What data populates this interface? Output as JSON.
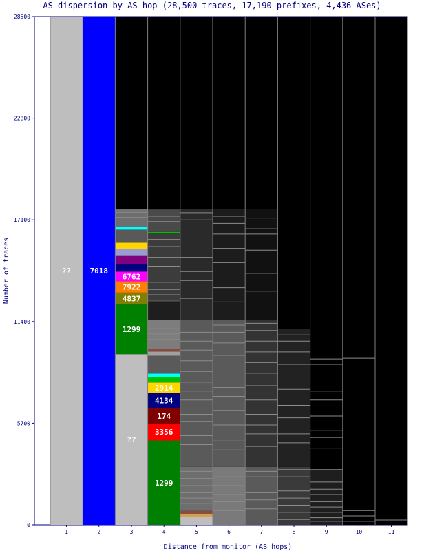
{
  "chart_data": {
    "type": "bar",
    "title": "AS dispersion by AS hop (28,500 traces, 17,190 prefixes, 4,436 ASes)",
    "xlabel": "Distance from monitor (AS hops)",
    "ylabel": "Number of traces",
    "ylim": [
      0,
      28500
    ],
    "yticks": [
      "0",
      "5700",
      "11400",
      "17100",
      "22800",
      "28500"
    ],
    "categories": [
      "1",
      "2",
      "3",
      "4",
      "5",
      "6",
      "7",
      "8",
      "9",
      "10",
      "11"
    ],
    "totals": [
      28500,
      28500,
      17690,
      17680,
      17700,
      17700,
      17700,
      17690,
      10650,
      9340,
      270
    ],
    "background_color": "#000000",
    "colors": {
      "unknown": "#bebebe",
      "7018": "#0000ff",
      "1299": "#008000",
      "4837": "#808000",
      "7922": "#ff8000",
      "6762": "#ff00ff",
      "2914": "#ffd700",
      "4134": "#000080",
      "174": "#800000",
      "3356": "#ff0000",
      "minor": "#808080"
    },
    "segments": [
      {
        "hop": "1",
        "label": "??",
        "y0": 0,
        "y1": 28500,
        "color": "#bebebe",
        "text_color": "#ffffff"
      },
      {
        "hop": "2",
        "label": "7018",
        "y0": 0,
        "y1": 28500,
        "color": "#0000ff",
        "text_color": "#ffffff"
      },
      {
        "hop": "3",
        "label": "??",
        "y0": 0,
        "y1": 9570,
        "color": "#bebebe",
        "text_color": "#ffffff"
      },
      {
        "hop": "3",
        "label": "1299",
        "y0": 9570,
        "y1": 12350,
        "color": "#008000",
        "text_color": "#ffffff"
      },
      {
        "hop": "3",
        "label": "4837",
        "y0": 12350,
        "y1": 13020,
        "color": "#808000",
        "text_color": "#ffffff"
      },
      {
        "hop": "3",
        "label": "7922",
        "y0": 13020,
        "y1": 13650,
        "color": "#ff8000",
        "text_color": "#ffffff"
      },
      {
        "hop": "3",
        "label": "6762",
        "y0": 13650,
        "y1": 14200,
        "color": "#ff00ff",
        "text_color": "#ffffff"
      },
      {
        "hop": "3",
        "label": "",
        "y0": 14200,
        "y1": 14630,
        "color": "#000080",
        "text_color": ""
      },
      {
        "hop": "3",
        "label": "",
        "y0": 14630,
        "y1": 15110,
        "color": "#800080",
        "text_color": ""
      },
      {
        "hop": "3",
        "label": "",
        "y0": 15110,
        "y1": 15470,
        "color": "#9b9bd2",
        "text_color": ""
      },
      {
        "hop": "3",
        "label": "",
        "y0": 15470,
        "y1": 15820,
        "color": "#ffd700",
        "text_color": ""
      },
      {
        "hop": "3",
        "label": "",
        "y0": 15820,
        "y1": 16550,
        "color": "#595959",
        "text_color": ""
      },
      {
        "hop": "3",
        "label": "",
        "y0": 16550,
        "y1": 16720,
        "color": "#00ffff",
        "text_color": ""
      },
      {
        "hop": "3",
        "label": "",
        "y0": 16720,
        "y1": 17690,
        "color": "#6e6e6e",
        "text_color": ""
      },
      {
        "hop": "4",
        "label": "1299",
        "y0": 0,
        "y1": 4730,
        "color": "#008000",
        "text_color": "#ffffff"
      },
      {
        "hop": "4",
        "label": "3356",
        "y0": 4730,
        "y1": 5680,
        "color": "#ff0000",
        "text_color": "#ffffff"
      },
      {
        "hop": "4",
        "label": "174",
        "y0": 5680,
        "y1": 6540,
        "color": "#800000",
        "text_color": "#ffffff"
      },
      {
        "hop": "4",
        "label": "4134",
        "y0": 6540,
        "y1": 7390,
        "color": "#000080",
        "text_color": "#ffffff"
      },
      {
        "hop": "4",
        "label": "2914",
        "y0": 7390,
        "y1": 7980,
        "color": "#ffd700",
        "text_color": "#ffffff"
      },
      {
        "hop": "4",
        "label": "",
        "y0": 7980,
        "y1": 8300,
        "color": "#00c000",
        "text_color": ""
      },
      {
        "hop": "4",
        "label": "",
        "y0": 8300,
        "y1": 8480,
        "color": "#00ffff",
        "text_color": ""
      },
      {
        "hop": "4",
        "label": "",
        "y0": 8480,
        "y1": 9480,
        "color": "#5a5a5a",
        "text_color": ""
      },
      {
        "hop": "4",
        "label": "",
        "y0": 9480,
        "y1": 9720,
        "color": "#a0a0a0",
        "text_color": ""
      },
      {
        "hop": "4",
        "label": "",
        "y0": 9720,
        "y1": 9860,
        "color": "#8b4a3c",
        "text_color": ""
      },
      {
        "hop": "4",
        "label": "",
        "y0": 9860,
        "y1": 11480,
        "color": "#7d7d7d",
        "text_color": ""
      },
      {
        "hop": "4",
        "label": "",
        "y0": 11480,
        "y1": 12470,
        "color": "#1e1e1e",
        "text_color": ""
      },
      {
        "hop": "4",
        "label": "",
        "y0": 12470,
        "y1": 16330,
        "color": "#3c3c3c",
        "text_color": ""
      },
      {
        "hop": "4",
        "label": "",
        "y0": 16330,
        "y1": 16420,
        "color": "#00c000",
        "text_color": ""
      },
      {
        "hop": "4",
        "label": "",
        "y0": 16420,
        "y1": 17680,
        "color": "#4a4a4a",
        "text_color": ""
      },
      {
        "hop": "5",
        "label": "",
        "y0": 0,
        "y1": 440,
        "color": "#bebebe",
        "text_color": ""
      },
      {
        "hop": "5",
        "label": "",
        "y0": 440,
        "y1": 630,
        "color": "#d2a050",
        "text_color": ""
      },
      {
        "hop": "5",
        "label": "",
        "y0": 630,
        "y1": 780,
        "color": "#8b4a3c",
        "text_color": ""
      },
      {
        "hop": "5",
        "label": "",
        "y0": 780,
        "y1": 3250,
        "color": "#6e6e6e",
        "text_color": ""
      },
      {
        "hop": "5",
        "label": "",
        "y0": 3250,
        "y1": 11480,
        "color": "#5a5a5a",
        "text_color": ""
      },
      {
        "hop": "5",
        "label": "",
        "y0": 11480,
        "y1": 17700,
        "color": "#2a2a2a",
        "text_color": ""
      },
      {
        "hop": "6",
        "label": "",
        "y0": 0,
        "y1": 3250,
        "color": "#7a7a7a",
        "text_color": ""
      },
      {
        "hop": "6",
        "label": "",
        "y0": 3250,
        "y1": 11480,
        "color": "#5a5a5a",
        "text_color": ""
      },
      {
        "hop": "6",
        "label": "",
        "y0": 11480,
        "y1": 17700,
        "color": "#1c1c1c",
        "text_color": ""
      },
      {
        "hop": "7",
        "label": "",
        "y0": 0,
        "y1": 3250,
        "color": "#5a5a5a",
        "text_color": ""
      },
      {
        "hop": "7",
        "label": "",
        "y0": 3250,
        "y1": 11480,
        "color": "#333333",
        "text_color": ""
      },
      {
        "hop": "7",
        "label": "",
        "y0": 11480,
        "y1": 17700,
        "color": "#111111",
        "text_color": ""
      },
      {
        "hop": "8",
        "label": "",
        "y0": 0,
        "y1": 3250,
        "color": "#3a3a3a",
        "text_color": ""
      },
      {
        "hop": "8",
        "label": "",
        "y0": 3250,
        "y1": 11000,
        "color": "#222222",
        "text_color": ""
      },
      {
        "hop": "9",
        "label": "",
        "y0": 0,
        "y1": 3100,
        "color": "#1e1e1e",
        "text_color": ""
      }
    ],
    "rule_lines": [
      {
        "hop": "3",
        "values": [
          17240,
          17520,
          17600
        ]
      },
      {
        "hop": "4",
        "values": [
          10400,
          10700,
          11000,
          12600,
          12900,
          13200,
          13600,
          14000,
          14500,
          15000,
          15600,
          16000,
          16700,
          17000,
          17300
        ]
      },
      {
        "hop": "5",
        "values": [
          1200,
          1500,
          1800,
          2200,
          2600,
          3000,
          4500,
          5000,
          5800,
          6200,
          7000,
          7500,
          8000,
          8600,
          9200,
          9800,
          10300,
          10800,
          12700,
          13700,
          14200,
          15000,
          15700,
          16200,
          16700,
          17100,
          17500
        ]
      },
      {
        "hop": "6",
        "values": [
          800,
          1300,
          1700,
          2200,
          2700,
          4200,
          4700,
          5600,
          6400,
          7200,
          7700,
          8400,
          8900,
          9500,
          10200,
          10800,
          11200,
          12500,
          13300,
          14000,
          14700,
          15500,
          16300,
          16900,
          17300
        ]
      },
      {
        "hop": "7",
        "values": [
          600,
          900,
          1400,
          1800,
          2300,
          2700,
          3000,
          4400,
          5100,
          5600,
          6200,
          7000,
          7800,
          8500,
          9100,
          9700,
          10300,
          10900,
          11300,
          13100,
          14100,
          15400,
          16300,
          16600,
          17200
        ]
      },
      {
        "hop": "8",
        "values": [
          300,
          700,
          1100,
          1500,
          1900,
          2300,
          2700,
          3100,
          4600,
          5100,
          6000,
          6700,
          7600,
          8400,
          9000,
          9700,
          10300,
          10650
        ]
      },
      {
        "hop": "9",
        "values": [
          200,
          400,
          700,
          1000,
          1300,
          1700,
          2000,
          2400,
          2800,
          3100,
          4300,
          4900,
          5300,
          6100,
          7000,
          7500,
          8400,
          9000,
          9300
        ]
      },
      {
        "hop": "10",
        "values": [
          200,
          500,
          800,
          9340
        ]
      },
      {
        "hop": "11",
        "values": [
          270
        ]
      }
    ]
  }
}
